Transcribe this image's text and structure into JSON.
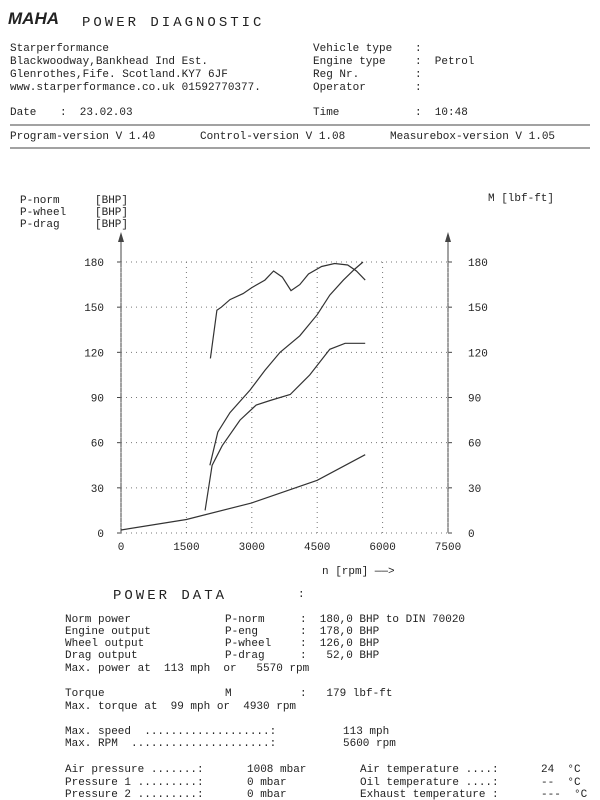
{
  "header": {
    "logo": "MAHA",
    "title": "POWER DIAGNOSTIC"
  },
  "company": [
    "Starperformance",
    "Blackwoodway,Bankhead Ind Est.",
    "Glenrothes,Fife. Scotland.KY7 6JF",
    "www.starperformance.co.uk 01592770377."
  ],
  "vehicle": [
    {
      "label": "Vehicle type",
      "value": ":"
    },
    {
      "label": "Engine type",
      "value": ":  Petrol"
    },
    {
      "label": "Reg Nr.",
      "value": ":"
    },
    {
      "label": "Operator",
      "value": ":"
    }
  ],
  "date": {
    "label": "Date",
    "value": ":  23.02.03"
  },
  "time": {
    "label": "Time",
    "value": ":  10:48"
  },
  "versions": [
    "Program-version V 1.40",
    "Control-version V 1.08",
    "Measurebox-version V 1.05"
  ],
  "chart_data": {
    "type": "line",
    "color": "#333333",
    "grid": true,
    "right_axis_label": "M [lbf-ft]",
    "x_label": "n [rpm] ——>",
    "xlim": [
      0,
      7500
    ],
    "xticks": [
      0,
      1500,
      3000,
      4500,
      6000,
      7500
    ],
    "ylim": [
      0,
      180
    ],
    "yticks": [
      0,
      30,
      60,
      90,
      120,
      150,
      180
    ],
    "y2lim": [
      0,
      180
    ],
    "y2ticks": [
      0,
      30,
      60,
      90,
      120,
      150,
      180
    ],
    "series": [
      {
        "name": "P-norm",
        "unit": "[BHP]",
        "x": [
          2040,
          2220,
          2500,
          2960,
          3300,
          3650,
          4100,
          4500,
          4790,
          5100,
          5350,
          5550
        ],
        "values": [
          45,
          67,
          80,
          95,
          108,
          120,
          131,
          145,
          158,
          168,
          175,
          180
        ]
      },
      {
        "name": "P-wheel",
        "unit": "[BHP]",
        "x": [
          1930,
          2090,
          2320,
          2730,
          3100,
          3420,
          3880,
          4330,
          4790,
          5140,
          5600
        ],
        "values": [
          15,
          45,
          58,
          75,
          85,
          88,
          92,
          105,
          122,
          126,
          126
        ]
      },
      {
        "name": "P-drag",
        "unit": "[BHP]",
        "x": [
          0,
          1500,
          3000,
          4500,
          5600
        ],
        "values": [
          2,
          9,
          20,
          35,
          52
        ]
      },
      {
        "axis": "y2",
        "x": [
          2050,
          2200,
          2300,
          2500,
          2800,
          3000,
          3300,
          3500,
          3700,
          3900,
          4100,
          4300,
          4600,
          4900,
          5200,
          5400,
          5600
        ],
        "values": [
          116,
          148,
          150,
          155,
          159,
          163,
          168,
          174,
          170,
          161,
          165,
          172,
          177,
          179,
          178,
          174,
          168
        ]
      }
    ]
  },
  "power_data": {
    "title": "POWER DATA",
    "colon": ":",
    "rows": [
      [
        "Norm power",
        "P-norm",
        ":  180,0 BHP to DIN 70020"
      ],
      [
        "Engine output",
        "P-eng",
        ":  178,0 BHP"
      ],
      [
        "Wheel output",
        "P-wheel",
        ":  126,0 BHP"
      ],
      [
        "Drag output",
        "P-drag",
        ":   52,0 BHP"
      ],
      [
        "Max. power at  113 mph  or   5570 rpm"
      ],
      [
        "Torque",
        "M",
        ":   179 lbf-ft"
      ],
      [
        "Max. torque at  99 mph or  4930 rpm"
      ],
      [
        "Max. speed  ...................:",
        "113 mph"
      ],
      [
        "Max. RPM  .....................:",
        "5600 rpm"
      ],
      [
        "Air pressure .......:",
        "1008 mbar",
        "Air temperature ....:",
        "24  °C"
      ],
      [
        "Pressure 1 .........:",
        "0 mbar",
        "Oil temperature ....:",
        "--  °C"
      ],
      [
        "Pressure 2 .........:",
        "0 mbar",
        "Exhaust temperature :",
        "---  °C"
      ]
    ]
  }
}
